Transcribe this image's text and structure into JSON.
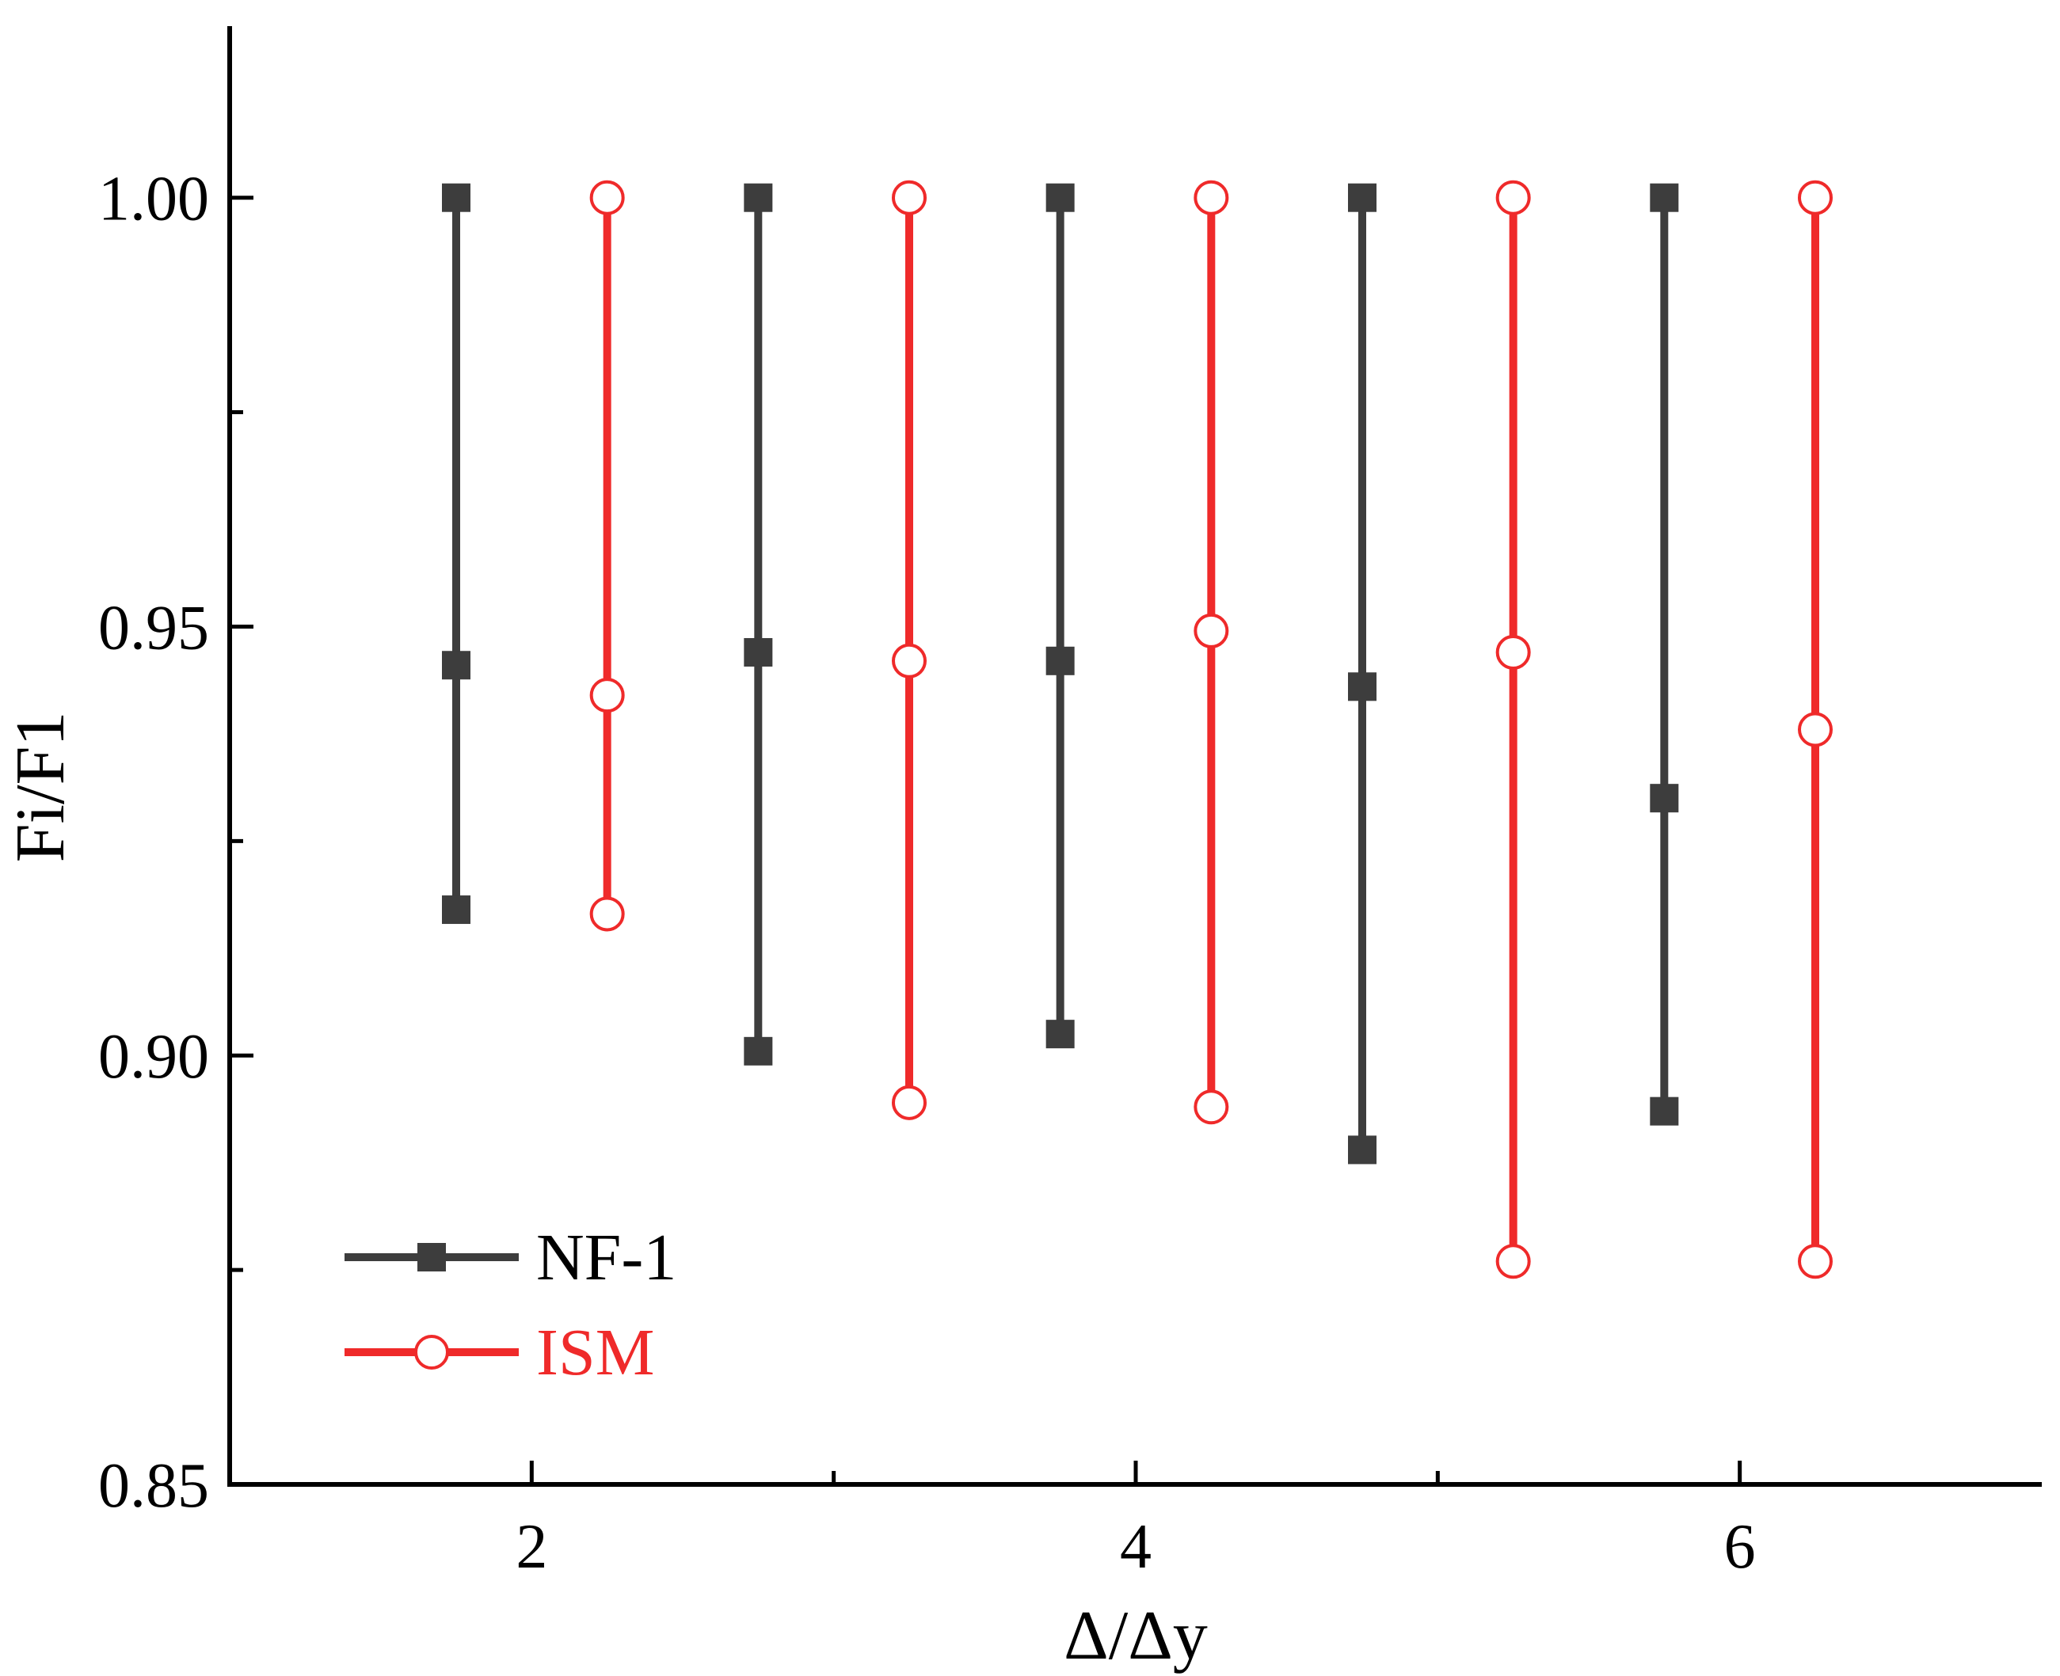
{
  "chart_data": {
    "type": "line",
    "xlabel": "Δ/Δy",
    "ylabel": "Fi/F1",
    "xlim": [
      1.0,
      7.0
    ],
    "ylim": [
      0.85,
      1.02
    ],
    "x_ticks": [
      2,
      4,
      6
    ],
    "x_tick_labels": [
      "2",
      "4",
      "6"
    ],
    "y_ticks": [
      0.85,
      0.9,
      0.95,
      1.0
    ],
    "y_tick_labels": [
      "0.85",
      "0.90",
      "0.95",
      "1.00"
    ],
    "grid": false,
    "legend_position": "bottom-left",
    "series": [
      {
        "name": "NF-1",
        "color": "#3d3d3d",
        "marker": "filled-square",
        "groups": [
          {
            "x": 1.75,
            "y": [
              1.0,
              0.9455,
              0.917
            ]
          },
          {
            "x": 2.75,
            "y": [
              1.0,
              0.947,
              0.9005
            ]
          },
          {
            "x": 3.75,
            "y": [
              1.0,
              0.946,
              0.9025
            ]
          },
          {
            "x": 4.75,
            "y": [
              1.0,
              0.943,
              0.889
            ]
          },
          {
            "x": 5.75,
            "y": [
              1.0,
              0.93,
              0.8935
            ]
          }
        ]
      },
      {
        "name": "ISM",
        "color": "#ef2a2a",
        "marker": "open-circle",
        "groups": [
          {
            "x": 2.25,
            "y": [
              1.0,
              0.942,
              0.9165
            ]
          },
          {
            "x": 3.25,
            "y": [
              1.0,
              0.946,
              0.8945
            ]
          },
          {
            "x": 4.25,
            "y": [
              1.0,
              0.9495,
              0.894
            ]
          },
          {
            "x": 5.25,
            "y": [
              1.0,
              0.947,
              0.876
            ]
          },
          {
            "x": 6.25,
            "y": [
              1.0,
              0.938,
              0.876
            ]
          }
        ]
      }
    ]
  }
}
